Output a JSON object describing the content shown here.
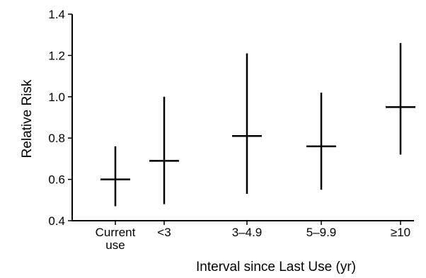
{
  "chart_data": {
    "type": "errorbar",
    "title": "",
    "xlabel": "Interval since Last Use (yr)",
    "ylabel": "Relative Risk",
    "ylim": [
      0.4,
      1.4
    ],
    "yticks": [
      "0.4",
      "0.6",
      "0.8",
      "1.0",
      "1.2",
      "1.4"
    ],
    "grid": false,
    "categories": [
      [
        "Current",
        "use"
      ],
      [
        "<3"
      ],
      [
        "3–4.9"
      ],
      [
        "5–9.9"
      ],
      [
        "≥10"
      ]
    ],
    "series": [
      {
        "estimate": [
          0.6,
          0.69,
          0.81,
          0.76,
          0.95
        ],
        "lower": [
          0.47,
          0.48,
          0.53,
          0.55,
          0.72
        ],
        "upper": [
          0.76,
          1.0,
          1.21,
          1.02,
          1.26
        ]
      }
    ]
  }
}
